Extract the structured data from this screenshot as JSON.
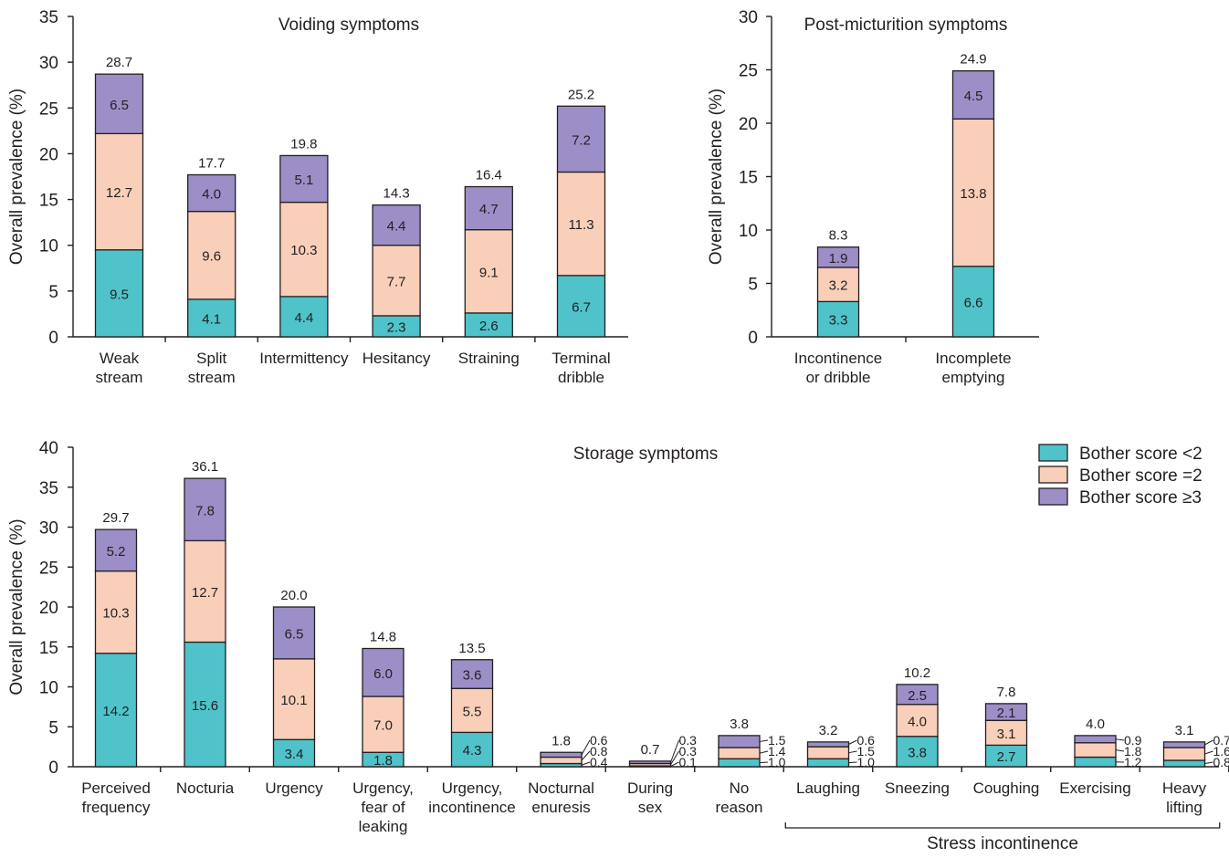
{
  "colors": {
    "bother_lt2": "#4fc3c9",
    "bother_eq2": "#f9cfba",
    "bother_ge3": "#9c8fc8",
    "axis": "#231f20"
  },
  "legend": {
    "items": [
      {
        "label": "Bother score <2",
        "color": "#4fc3c9"
      },
      {
        "label": "Bother score =2",
        "color": "#f9cfba"
      },
      {
        "label": "Bother score ≥3",
        "color": "#9c8fc8"
      }
    ]
  },
  "chart_data": [
    {
      "type": "bar",
      "stacked": true,
      "title": "Voiding symptoms",
      "ylabel": "Overall prevalence (%)",
      "ylim": [
        0,
        35
      ],
      "yticks": [
        0,
        5,
        10,
        15,
        20,
        25,
        30,
        35
      ],
      "categories": [
        "Weak\nstream",
        "Split\nstream",
        "Intermittency",
        "Hesitancy",
        "Straining",
        "Terminal\ndribble"
      ],
      "series": [
        {
          "name": "Bother score <2",
          "values": [
            9.5,
            4.1,
            4.4,
            2.3,
            2.6,
            6.7
          ]
        },
        {
          "name": "Bother score =2",
          "values": [
            12.7,
            9.6,
            10.3,
            7.7,
            9.1,
            11.3
          ]
        },
        {
          "name": "Bother score ≥3",
          "values": [
            6.5,
            4.0,
            5.1,
            4.4,
            4.7,
            7.2
          ]
        }
      ],
      "totals": [
        "28.7",
        "17.7",
        "19.8",
        "14.3",
        "16.4",
        "25.2"
      ],
      "segment_labels": [
        [
          "9.5",
          "12.7",
          "6.5"
        ],
        [
          "4.1",
          "9.6",
          "4.0"
        ],
        [
          "4.4",
          "10.3",
          "5.1"
        ],
        [
          "2.3",
          "7.7",
          "4.4"
        ],
        [
          "2.6",
          "9.1",
          "4.7"
        ],
        [
          "6.7",
          "11.3",
          "7.2"
        ]
      ]
    },
    {
      "type": "bar",
      "stacked": true,
      "title": "Post-micturition symptoms",
      "ylabel": "Overall prevalence (%)",
      "ylim": [
        0,
        30
      ],
      "yticks": [
        0,
        5,
        10,
        15,
        20,
        25,
        30
      ],
      "categories": [
        "Incontinence\nor dribble",
        "Incomplete\nemptying"
      ],
      "series": [
        {
          "name": "Bother score <2",
          "values": [
            3.3,
            6.6
          ]
        },
        {
          "name": "Bother score =2",
          "values": [
            3.2,
            13.8
          ]
        },
        {
          "name": "Bother score ≥3",
          "values": [
            1.9,
            4.5
          ]
        }
      ],
      "totals": [
        "8.3",
        "24.9"
      ],
      "segment_labels": [
        [
          "3.3",
          "3.2",
          "1.9"
        ],
        [
          "6.6",
          "13.8",
          "4.5"
        ]
      ]
    },
    {
      "type": "bar",
      "stacked": true,
      "title": "Storage symptoms",
      "ylabel": "Overall prevalence (%)",
      "ylim": [
        0,
        40
      ],
      "yticks": [
        0,
        5,
        10,
        15,
        20,
        25,
        30,
        35,
        40
      ],
      "categories": [
        "Perceived\nfrequency",
        "Nocturia",
        "Urgency",
        "Urgency,\nfear of\nleaking",
        "Urgency,\nincontinence",
        "Nocturnal\nenuresis",
        "During\nsex",
        "No\nreason",
        "Laughing",
        "Sneezing",
        "Coughing",
        "Exercising",
        "Heavy\nlifting"
      ],
      "series": [
        {
          "name": "Bother score <2",
          "values": [
            14.2,
            15.6,
            3.4,
            1.8,
            4.3,
            0.4,
            0.1,
            1.0,
            1.0,
            3.8,
            2.7,
            1.2,
            0.8
          ]
        },
        {
          "name": "Bother score =2",
          "values": [
            10.3,
            12.7,
            10.1,
            7.0,
            5.5,
            0.8,
            0.3,
            1.4,
            1.5,
            4.0,
            3.1,
            1.8,
            1.6
          ]
        },
        {
          "name": "Bother score ≥3",
          "values": [
            5.2,
            7.8,
            6.5,
            6.0,
            3.6,
            0.6,
            0.3,
            1.5,
            0.6,
            2.5,
            2.1,
            0.9,
            0.7
          ]
        }
      ],
      "totals": [
        "29.7",
        "36.1",
        "20.0",
        "14.8",
        "13.5",
        "1.8",
        "0.7",
        "3.8",
        "3.2",
        "10.2",
        "7.8",
        "4.0",
        "3.1"
      ],
      "segment_labels": [
        [
          "14.2",
          "10.3",
          "5.2"
        ],
        [
          "15.6",
          "12.7",
          "7.8"
        ],
        [
          "3.4",
          "10.1",
          "6.5"
        ],
        [
          "1.8",
          "7.0",
          "6.0"
        ],
        [
          "4.3",
          "5.5",
          "3.6"
        ],
        [
          "0.4",
          "0.8",
          "0.6"
        ],
        [
          "0.1",
          "0.3",
          "0.3"
        ],
        [
          "1.0",
          "1.4",
          "1.5"
        ],
        [
          "1.0",
          "1.5",
          "0.6"
        ],
        [
          "3.8",
          "4.0",
          "2.5"
        ],
        [
          "2.7",
          "3.1",
          "2.1"
        ],
        [
          "1.2",
          "1.8",
          "0.9"
        ],
        [
          "0.8",
          "1.6",
          "0.7"
        ]
      ],
      "outside_labels": [
        false,
        false,
        false,
        false,
        false,
        true,
        true,
        true,
        true,
        false,
        false,
        true,
        true
      ],
      "group_bracket": {
        "label": "Stress incontinence",
        "categories": [
          "Laughing",
          "Sneezing",
          "Coughing",
          "Exercising",
          "Heavy\nlifting"
        ]
      }
    }
  ]
}
